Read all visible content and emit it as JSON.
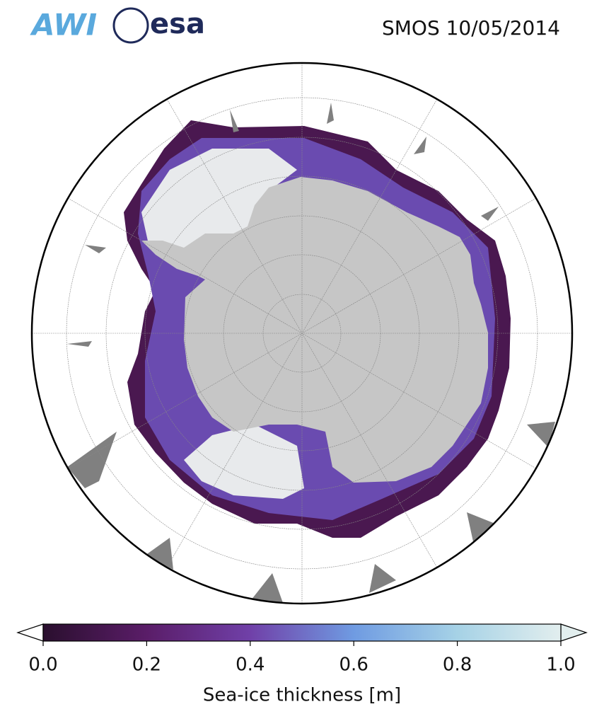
{
  "header": {
    "logos": [
      "AWI",
      "esa"
    ],
    "title": "SMOS 10/05/2014"
  },
  "colorbar": {
    "label": "Sea-ice thickness [m]",
    "lim": [
      0,
      1
    ],
    "ticks": [
      {
        "value": 0,
        "label": "0.0"
      },
      {
        "value": 0.2,
        "label": "0.2"
      },
      {
        "value": 0.4,
        "label": "0.4"
      },
      {
        "value": 0.6,
        "label": "0.6"
      },
      {
        "value": 0.8,
        "label": "0.8"
      },
      {
        "value": 1,
        "label": "1.0"
      }
    ]
  }
}
